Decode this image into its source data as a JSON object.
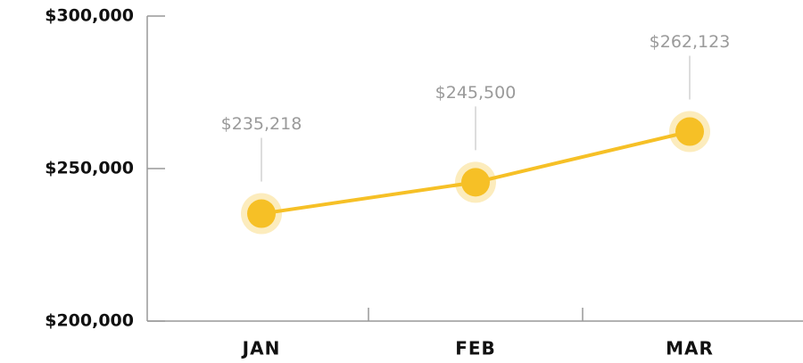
{
  "chart_data": {
    "type": "line",
    "categories": [
      "JAN",
      "FEB",
      "MAR"
    ],
    "values": [
      235218,
      245500,
      262123
    ],
    "value_labels": [
      "$235,218",
      "$245,500",
      "$262,123"
    ],
    "color": "#f6c026",
    "ylim": [
      200000,
      300000
    ],
    "yticks": [
      {
        "value": 200000,
        "label": "$200,000"
      },
      {
        "value": 250000,
        "label": "$250,000"
      },
      {
        "value": 300000,
        "label": "$300,000"
      }
    ],
    "grid": false
  }
}
